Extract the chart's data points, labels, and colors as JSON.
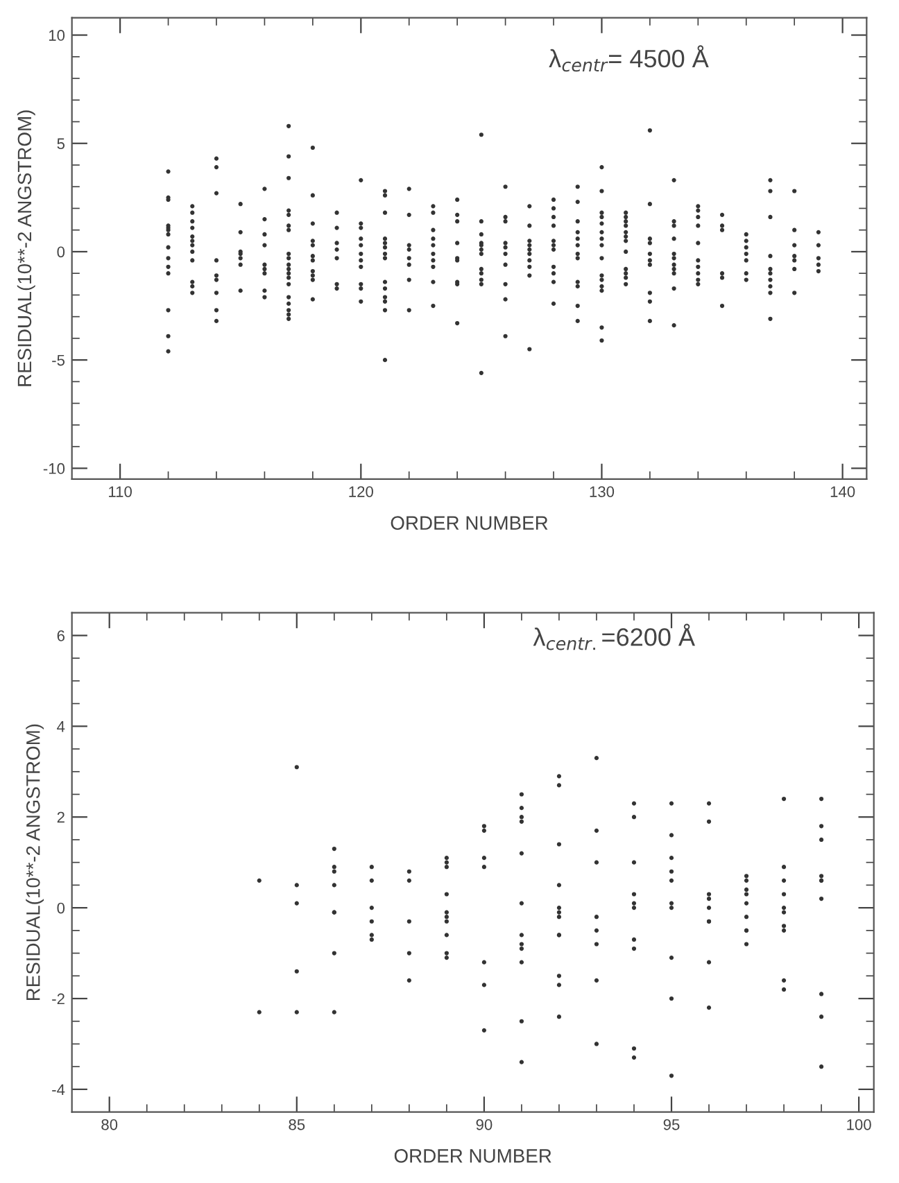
{
  "chart_data": [
    {
      "type": "scatter",
      "xlabel": "ORDER NUMBER",
      "ylabel": "RESIDUAL(10**-2 ANGSTROM)",
      "annotations": [
        "λ$_{centr}$= 4500 Å"
      ],
      "marker": "circle",
      "xlim": [
        108,
        141
      ],
      "ylim": [
        -10.5,
        10.8
      ],
      "xticks": [
        110,
        {
          "value": 112,
          "label": null
        },
        {
          "value": 114,
          "label": null
        },
        {
          "value": 116,
          "label": null
        },
        {
          "value": 118,
          "label": null
        },
        120,
        {
          "value": 122,
          "label": null
        },
        {
          "value": 124,
          "label": null
        },
        {
          "value": 126,
          "label": null
        },
        {
          "value": 128,
          "label": null
        },
        130,
        {
          "value": 132,
          "label": null
        },
        {
          "value": 134,
          "label": null
        },
        {
          "value": 136,
          "label": null
        },
        {
          "value": 138,
          "label": null
        },
        140
      ],
      "yticks": [
        -10,
        {
          "value": -9,
          "label": null
        },
        {
          "value": -8,
          "label": null
        },
        {
          "value": -7,
          "label": null
        },
        {
          "value": -6,
          "label": null
        },
        -5,
        {
          "value": -4,
          "label": null
        },
        {
          "value": -3,
          "label": null
        },
        {
          "value": -2,
          "label": null
        },
        {
          "value": -1,
          "label": null
        },
        0,
        {
          "value": 1,
          "label": null
        },
        {
          "value": 2,
          "label": null
        },
        {
          "value": 3,
          "label": null
        },
        {
          "value": 4,
          "label": null
        },
        5,
        {
          "value": 6,
          "label": null
        },
        {
          "value": 7,
          "label": null
        },
        {
          "value": 8,
          "label": null
        },
        {
          "value": 9,
          "label": null
        },
        10
      ],
      "series": [
        {
          "color": "#333333",
          "x": [
            112,
            112,
            112,
            112,
            112,
            112,
            112,
            112,
            112,
            112,
            112,
            112,
            112,
            112,
            113,
            113,
            113,
            113,
            113,
            113,
            113,
            113,
            113,
            113,
            113,
            113,
            114,
            114,
            114,
            114,
            114,
            114,
            114,
            114,
            114,
            115,
            115,
            115,
            115,
            115,
            115,
            115,
            116,
            116,
            116,
            116,
            116,
            116,
            116,
            116,
            116,
            117,
            117,
            117,
            117,
            117,
            117,
            117,
            117,
            117,
            117,
            117,
            117,
            117,
            117,
            117,
            117,
            117,
            117,
            117,
            118,
            118,
            118,
            118,
            118,
            118,
            118,
            118,
            118,
            118,
            118,
            119,
            119,
            119,
            119,
            119,
            119,
            119,
            120,
            120,
            120,
            120,
            120,
            120,
            120,
            120,
            120,
            120,
            120,
            121,
            121,
            121,
            121,
            121,
            121,
            121,
            121,
            121,
            121,
            121,
            121,
            121,
            121,
            122,
            122,
            122,
            122,
            122,
            122,
            122,
            122,
            123,
            123,
            123,
            123,
            123,
            123,
            123,
            123,
            123,
            123,
            124,
            124,
            124,
            124,
            124,
            124,
            124,
            124,
            124,
            125,
            125,
            125,
            125,
            125,
            125,
            125,
            125,
            125,
            125,
            125,
            125,
            126,
            126,
            126,
            126,
            126,
            126,
            126,
            126,
            126,
            126,
            127,
            127,
            127,
            127,
            127,
            127,
            127,
            127,
            127,
            127,
            128,
            128,
            128,
            128,
            128,
            128,
            128,
            128,
            128,
            128,
            128,
            129,
            129,
            129,
            129,
            129,
            129,
            129,
            129,
            129,
            129,
            129,
            129,
            130,
            130,
            130,
            130,
            130,
            130,
            130,
            130,
            130,
            130,
            130,
            130,
            130,
            130,
            130,
            131,
            131,
            131,
            131,
            131,
            131,
            131,
            131,
            131,
            131,
            131,
            131,
            132,
            132,
            132,
            132,
            132,
            132,
            132,
            132,
            132,
            132,
            133,
            133,
            133,
            133,
            133,
            133,
            133,
            133,
            133,
            133,
            133,
            134,
            134,
            134,
            134,
            134,
            134,
            134,
            134,
            134,
            134,
            135,
            135,
            135,
            135,
            135,
            135,
            136,
            136,
            136,
            136,
            136,
            136,
            136,
            137,
            137,
            137,
            137,
            137,
            137,
            137,
            137,
            137,
            137,
            138,
            138,
            138,
            138,
            138,
            138,
            138,
            139,
            139,
            139,
            139,
            139
          ],
          "values": [
            3.7,
            2.5,
            2.4,
            1.2,
            1.1,
            1.0,
            0.8,
            0.2,
            -0.3,
            -0.7,
            -1.0,
            -2.7,
            -3.9,
            -4.6,
            2.1,
            1.8,
            1.4,
            1.1,
            0.7,
            0.5,
            0.3,
            0.0,
            -0.4,
            -1.4,
            -1.6,
            -1.9,
            4.3,
            3.9,
            2.7,
            -0.4,
            -1.1,
            -1.3,
            -1.9,
            -2.7,
            -3.2,
            2.2,
            0.9,
            0.0,
            -0.1,
            -0.3,
            -0.6,
            -1.8,
            2.9,
            1.5,
            0.8,
            0.3,
            -0.6,
            -0.8,
            -1.0,
            -1.8,
            -2.1,
            5.8,
            4.4,
            3.4,
            1.9,
            1.7,
            1.2,
            1.0,
            -0.1,
            -0.3,
            -0.6,
            -0.8,
            -1.0,
            -1.2,
            -1.5,
            -2.1,
            -2.4,
            -2.7,
            -2.9,
            -3.1,
            4.8,
            2.6,
            1.3,
            0.5,
            0.3,
            -0.2,
            -0.4,
            -0.9,
            -1.1,
            -1.3,
            -2.2,
            1.8,
            1.1,
            0.4,
            0.1,
            -0.3,
            -1.5,
            -1.7,
            3.3,
            1.3,
            1.1,
            0.6,
            0.3,
            -0.1,
            -0.4,
            -0.7,
            -1.5,
            -1.7,
            -2.3,
            2.8,
            2.6,
            1.8,
            0.6,
            0.4,
            0.2,
            -0.1,
            -0.3,
            -1.4,
            -1.7,
            -2.1,
            -2.3,
            -2.7,
            -5.0,
            2.9,
            1.7,
            0.3,
            0.1,
            -0.3,
            -0.6,
            -1.3,
            -2.7,
            2.1,
            1.8,
            1.0,
            0.6,
            0.3,
            -0.1,
            -0.4,
            -0.7,
            -1.4,
            -2.5,
            2.4,
            1.7,
            1.4,
            0.4,
            -0.3,
            -0.4,
            -1.4,
            -1.5,
            -3.3,
            5.4,
            1.4,
            0.8,
            0.4,
            0.3,
            0.1,
            -0.1,
            -0.8,
            -1.0,
            -1.3,
            -1.5,
            -5.6,
            3.0,
            1.6,
            1.4,
            0.4,
            0.2,
            -0.1,
            -0.6,
            -1.5,
            -2.2,
            -3.9,
            2.1,
            1.2,
            0.5,
            0.3,
            0.1,
            -0.1,
            -0.4,
            -0.7,
            -1.1,
            -4.5,
            2.4,
            2.0,
            1.6,
            1.2,
            0.5,
            0.3,
            0.1,
            -0.7,
            -1.0,
            -1.4,
            -2.4,
            3.0,
            2.3,
            1.4,
            0.9,
            0.6,
            0.3,
            -0.1,
            -0.3,
            -1.4,
            -1.6,
            -2.5,
            -3.2,
            3.9,
            2.8,
            1.8,
            1.6,
            1.3,
            0.9,
            0.6,
            0.3,
            -0.3,
            -1.1,
            -1.3,
            -1.6,
            -1.8,
            -3.5,
            -4.1,
            1.8,
            1.6,
            1.4,
            1.2,
            0.9,
            0.7,
            0.5,
            0.0,
            -0.8,
            -1.0,
            -1.2,
            -1.5,
            5.6,
            2.2,
            0.6,
            0.4,
            -0.1,
            -0.4,
            -0.6,
            -1.9,
            -2.3,
            -3.2,
            3.3,
            1.4,
            1.2,
            0.6,
            -0.1,
            -0.3,
            -0.6,
            -0.8,
            -1.0,
            -1.7,
            -3.4,
            2.1,
            1.9,
            1.6,
            1.2,
            0.4,
            -0.4,
            -0.7,
            -1.0,
            -1.3,
            -1.5,
            1.7,
            1.2,
            1.0,
            -1.0,
            -1.2,
            -2.5,
            0.8,
            0.5,
            0.2,
            -0.1,
            -0.4,
            -1.0,
            -1.3,
            3.3,
            2.8,
            1.6,
            -0.2,
            -0.8,
            -1.0,
            -1.3,
            -1.6,
            -1.9,
            -3.1,
            2.8,
            1.0,
            0.3,
            -0.2,
            -0.4,
            -0.8,
            -1.9,
            0.9,
            0.3,
            -0.3,
            -0.6,
            -0.9
          ]
        }
      ]
    },
    {
      "type": "scatter",
      "xlabel": "ORDER NUMBER",
      "ylabel": "RESIDUAL(10**-2 ANGSTROM)",
      "annotations": [
        "λ$_{centr.}$=6200 Å"
      ],
      "marker": "circle",
      "xlim": [
        79,
        100.4
      ],
      "ylim": [
        -4.5,
        6.5
      ],
      "xticks": [
        80,
        {
          "value": 81,
          "label": null
        },
        {
          "value": 82,
          "label": null
        },
        {
          "value": 83,
          "label": null
        },
        {
          "value": 84,
          "label": null
        },
        85,
        {
          "value": 86,
          "label": null
        },
        {
          "value": 87,
          "label": null
        },
        {
          "value": 88,
          "label": null
        },
        {
          "value": 89,
          "label": null
        },
        90,
        {
          "value": 91,
          "label": null
        },
        {
          "value": 92,
          "label": null
        },
        {
          "value": 93,
          "label": null
        },
        {
          "value": 94,
          "label": null
        },
        95,
        {
          "value": 96,
          "label": null
        },
        {
          "value": 97,
          "label": null
        },
        {
          "value": 98,
          "label": null
        },
        {
          "value": 99,
          "label": null
        },
        100
      ],
      "yticks": [
        -4,
        {
          "value": -3.5,
          "label": null
        },
        {
          "value": -3,
          "label": null
        },
        {
          "value": -2.5,
          "label": null
        },
        -2,
        {
          "value": -1.5,
          "label": null
        },
        {
          "value": -1,
          "label": null
        },
        {
          "value": -0.5,
          "label": null
        },
        0,
        {
          "value": 0.5,
          "label": null
        },
        {
          "value": 1,
          "label": null
        },
        {
          "value": 1.5,
          "label": null
        },
        2,
        {
          "value": 2.5,
          "label": null
        },
        {
          "value": 3,
          "label": null
        },
        {
          "value": 3.5,
          "label": null
        },
        4,
        {
          "value": 4.5,
          "label": null
        },
        {
          "value": 5,
          "label": null
        },
        {
          "value": 5.5,
          "label": null
        },
        6
      ],
      "series": [
        {
          "color": "#333333",
          "x": [
            84,
            84,
            85,
            85,
            85,
            85,
            85,
            86,
            86,
            86,
            86,
            86,
            86,
            86,
            86,
            87,
            87,
            87,
            87,
            87,
            87,
            88,
            88,
            88,
            88,
            88,
            89,
            89,
            89,
            89,
            89,
            89,
            89,
            89,
            89,
            89,
            90,
            90,
            90,
            90,
            90,
            90,
            90,
            91,
            91,
            91,
            91,
            91,
            91,
            91,
            91,
            91,
            91,
            91,
            91,
            92,
            92,
            92,
            92,
            92,
            92,
            92,
            92,
            92,
            92,
            92,
            92,
            93,
            93,
            93,
            93,
            93,
            93,
            93,
            93,
            94,
            94,
            94,
            94,
            94,
            94,
            94,
            94,
            94,
            94,
            95,
            95,
            95,
            95,
            95,
            95,
            95,
            95,
            95,
            95,
            96,
            96,
            96,
            96,
            96,
            96,
            96,
            96,
            96,
            97,
            97,
            97,
            97,
            97,
            97,
            97,
            97,
            97,
            98,
            98,
            98,
            98,
            98,
            98,
            98,
            98,
            98,
            98,
            99,
            99,
            99,
            99,
            99,
            99,
            99,
            99,
            99,
            99
          ],
          "values": [
            0.6,
            -2.3,
            3.1,
            0.5,
            0.1,
            -1.4,
            -2.3,
            1.3,
            0.9,
            0.8,
            0.5,
            -0.1,
            -0.1,
            -1.0,
            -2.3,
            0.9,
            0.6,
            0.0,
            -0.3,
            -0.6,
            -0.7,
            0.8,
            0.6,
            -0.3,
            -1.0,
            -1.6,
            1.1,
            1.0,
            0.9,
            0.3,
            -0.1,
            -0.2,
            -0.3,
            -0.6,
            -1.0,
            -1.1,
            1.8,
            1.7,
            1.1,
            0.9,
            -1.2,
            -1.7,
            -2.7,
            2.5,
            2.2,
            2.0,
            1.9,
            1.2,
            0.1,
            -0.6,
            -0.8,
            -0.9,
            -1.2,
            -2.5,
            -3.4,
            2.9,
            2.7,
            1.4,
            0.5,
            0.0,
            -0.1,
            -0.2,
            -0.6,
            -0.6,
            -1.5,
            -1.7,
            -2.4,
            3.3,
            1.7,
            1.0,
            -0.2,
            -0.5,
            -0.8,
            -1.6,
            -3.0,
            2.3,
            2.0,
            1.0,
            0.3,
            0.1,
            0.0,
            -0.7,
            -0.9,
            -3.1,
            -3.3,
            2.3,
            1.6,
            1.1,
            0.8,
            0.6,
            0.1,
            0.0,
            -1.1,
            -2.0,
            -3.7,
            2.3,
            1.9,
            0.3,
            0.2,
            0.0,
            -0.3,
            -0.3,
            -1.2,
            -2.2,
            0.7,
            0.6,
            0.4,
            0.3,
            0.1,
            -0.2,
            -0.5,
            -0.5,
            -0.8,
            2.4,
            0.9,
            0.6,
            0.3,
            0.0,
            -0.1,
            -0.4,
            -0.5,
            -1.6,
            -1.8,
            2.4,
            1.8,
            1.5,
            0.7,
            0.6,
            0.6,
            0.2,
            -1.9,
            -2.4,
            -3.5
          ]
        }
      ]
    }
  ]
}
